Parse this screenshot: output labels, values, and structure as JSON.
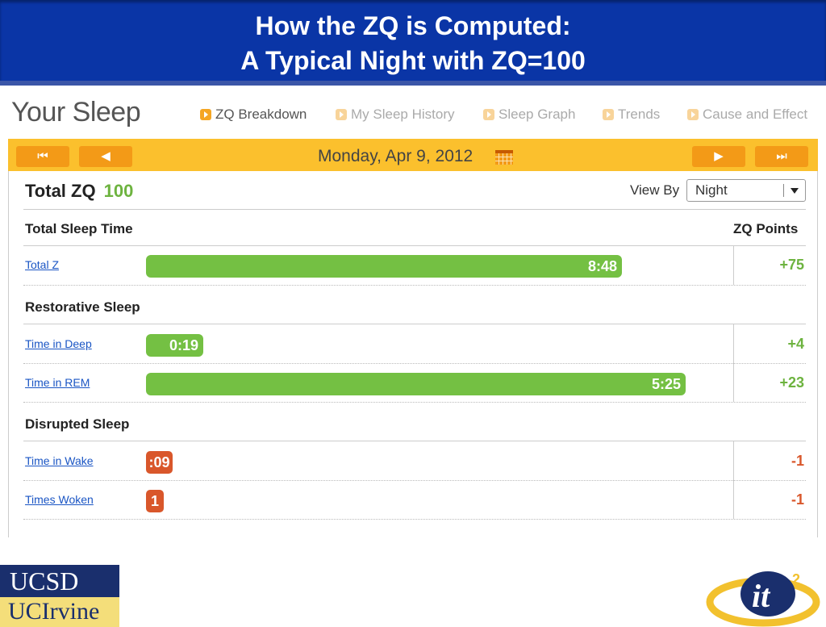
{
  "slide": {
    "title_line1": "How the ZQ is Computed:",
    "title_line2": "A Typical Night with ZQ=100",
    "logo_ucsd": "UCSD",
    "logo_uci": "UCIrvine",
    "logo_it2": "it",
    "logo_it2_sup": "2"
  },
  "app": {
    "title": "Your Sleep",
    "tabs": [
      {
        "label": "ZQ Breakdown",
        "active": true
      },
      {
        "label": "My Sleep History",
        "active": false
      },
      {
        "label": "Sleep Graph",
        "active": false
      },
      {
        "label": "Trends",
        "active": false
      },
      {
        "label": "Cause and Effect",
        "active": false
      }
    ],
    "date": "Monday, Apr 9, 2012",
    "total_label": "Total ZQ",
    "total_value": "100",
    "view_by_label": "View By",
    "view_by_value": "Night",
    "zq_points_header": "ZQ Points",
    "sections": [
      {
        "title": "Total Sleep Time"
      },
      {
        "title": "Restorative Sleep"
      },
      {
        "title": "Disrupted Sleep"
      }
    ],
    "rows": [
      {
        "label": "Total Z",
        "value": "8:48",
        "points": "+75"
      },
      {
        "label": "Time in Deep",
        "value": "0:19",
        "points": "+4"
      },
      {
        "label": "Time in REM",
        "value": "5:25",
        "points": "+23"
      },
      {
        "label": "Time in Wake",
        "value": ":09",
        "points": "-1"
      },
      {
        "label": "Times Woken",
        "value": "1",
        "points": "-1"
      }
    ]
  },
  "colors": {
    "banner": "#0a35a6",
    "accent_orange": "#f39a17",
    "date_bar": "#fbc02d",
    "good_green": "#74c043",
    "bad_red": "#d9572b"
  }
}
